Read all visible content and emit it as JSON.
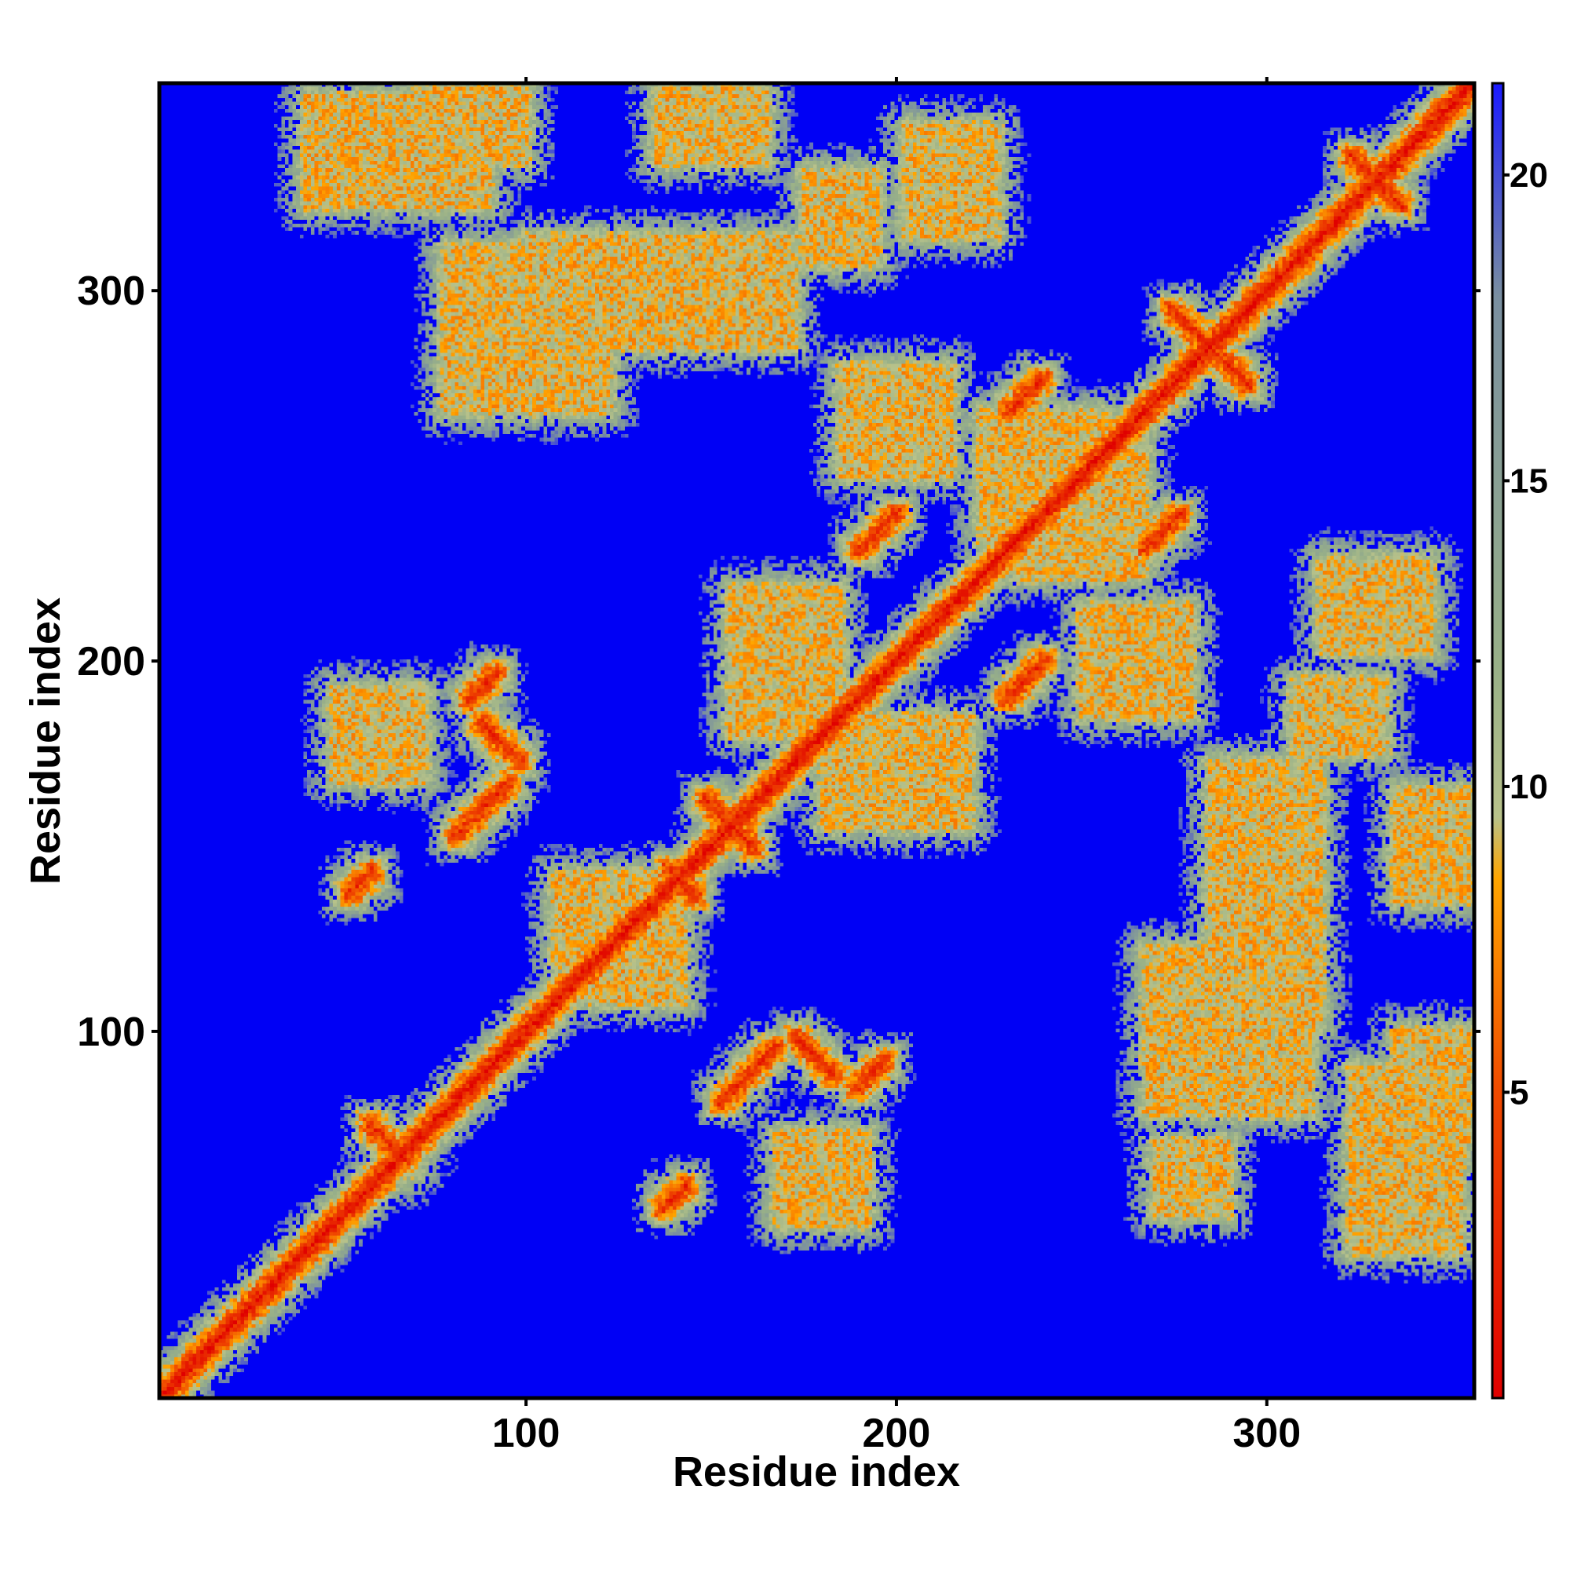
{
  "chart_data": {
    "type": "heatmap",
    "title": "",
    "xlabel": "Residue index",
    "ylabel": "Residue index",
    "n_residues": 356,
    "xlim": [
      1,
      356
    ],
    "ylim": [
      1,
      356
    ],
    "x_ticks": [
      100,
      200,
      300
    ],
    "y_ticks": [
      100,
      200,
      300
    ],
    "colorbar": {
      "range": [
        0,
        21.5
      ],
      "ticks": [
        5,
        10,
        15,
        20
      ],
      "stops": [
        {
          "value": 0,
          "color": "#e00000"
        },
        {
          "value": 5,
          "color": "#f04a00"
        },
        {
          "value": 8.5,
          "color": "#ffa500"
        },
        {
          "value": 9.5,
          "color": "#b8c28a"
        },
        {
          "value": 12,
          "color": "#98b088"
        },
        {
          "value": 18,
          "color": "#7a8fa0"
        },
        {
          "value": 21.5,
          "color": "#1a1aff"
        }
      ]
    },
    "background_color": "#0000f5",
    "cutoff": 20,
    "diagonal_band_width": 14,
    "contact_features": [
      {
        "type": "blob",
        "x": 66,
        "y": 66,
        "size": 12
      },
      {
        "type": "anti",
        "x": 62,
        "y": 70,
        "length": 14
      },
      {
        "type": "anti",
        "x": 142,
        "y": 140,
        "length": 12
      },
      {
        "type": "anti",
        "x": 155,
        "y": 156,
        "length": 20
      },
      {
        "type": "anti",
        "x": 285,
        "y": 285,
        "length": 30
      },
      {
        "type": "anti",
        "x": 330,
        "y": 330,
        "length": 20
      },
      {
        "type": "anti",
        "x": 93,
        "y": 178,
        "length": 16
      },
      {
        "type": "anti",
        "x": 178,
        "y": 93,
        "length": 16
      },
      {
        "type": "parallel",
        "x": 88,
        "y": 160,
        "length": 22
      },
      {
        "type": "parallel",
        "x": 160,
        "y": 88,
        "length": 22
      },
      {
        "type": "parallel",
        "x": 195,
        "y": 235,
        "length": 16
      },
      {
        "type": "parallel",
        "x": 235,
        "y": 195,
        "length": 16
      },
      {
        "type": "parallel",
        "x": 235,
        "y": 272,
        "length": 14
      },
      {
        "type": "parallel",
        "x": 272,
        "y": 235,
        "length": 14
      },
      {
        "type": "parallel",
        "x": 88,
        "y": 193,
        "length": 12
      },
      {
        "type": "parallel",
        "x": 193,
        "y": 88,
        "length": 12
      },
      {
        "type": "parallel",
        "x": 55,
        "y": 140,
        "length": 10
      },
      {
        "type": "parallel",
        "x": 140,
        "y": 55,
        "length": 10
      },
      {
        "type": "patch",
        "x": 65,
        "y": 338,
        "w": 50,
        "h": 30
      },
      {
        "type": "patch",
        "x": 338,
        "y": 65,
        "w": 30,
        "h": 50
      },
      {
        "type": "patch",
        "x": 100,
        "y": 290,
        "w": 45,
        "h": 45
      },
      {
        "type": "patch",
        "x": 290,
        "y": 100,
        "w": 45,
        "h": 45
      },
      {
        "type": "patch",
        "x": 155,
        "y": 300,
        "w": 35,
        "h": 30
      },
      {
        "type": "patch",
        "x": 300,
        "y": 155,
        "w": 30,
        "h": 35
      },
      {
        "type": "patch",
        "x": 215,
        "y": 330,
        "w": 25,
        "h": 30
      },
      {
        "type": "patch",
        "x": 330,
        "y": 215,
        "w": 30,
        "h": 25
      },
      {
        "type": "patch",
        "x": 200,
        "y": 265,
        "w": 30,
        "h": 30
      },
      {
        "type": "patch",
        "x": 265,
        "y": 200,
        "w": 30,
        "h": 30
      },
      {
        "type": "patch",
        "x": 170,
        "y": 200,
        "w": 30,
        "h": 40
      },
      {
        "type": "patch",
        "x": 200,
        "y": 170,
        "w": 40,
        "h": 30
      },
      {
        "type": "patch",
        "x": 60,
        "y": 180,
        "w": 25,
        "h": 25
      },
      {
        "type": "patch",
        "x": 180,
        "y": 60,
        "w": 25,
        "h": 25
      },
      {
        "type": "patch",
        "x": 125,
        "y": 130,
        "w": 35,
        "h": 25
      },
      {
        "type": "patch",
        "x": 130,
        "y": 125,
        "w": 25,
        "h": 35
      },
      {
        "type": "patch",
        "x": 320,
        "y": 185,
        "w": 25,
        "h": 20
      },
      {
        "type": "patch",
        "x": 185,
        "y": 320,
        "w": 20,
        "h": 25
      },
      {
        "type": "patch",
        "x": 280,
        "y": 60,
        "w": 20,
        "h": 20
      },
      {
        "type": "patch",
        "x": 345,
        "y": 85,
        "w": 20,
        "h": 30
      },
      {
        "type": "patch",
        "x": 85,
        "y": 345,
        "w": 30,
        "h": 20
      },
      {
        "type": "patch",
        "x": 300,
        "y": 120,
        "w": 30,
        "h": 40
      },
      {
        "type": "patch",
        "x": 120,
        "y": 300,
        "w": 40,
        "h": 30
      },
      {
        "type": "patch",
        "x": 250,
        "y": 240,
        "w": 35,
        "h": 35
      },
      {
        "type": "patch",
        "x": 240,
        "y": 250,
        "w": 35,
        "h": 35
      },
      {
        "type": "patch",
        "x": 345,
        "y": 150,
        "w": 20,
        "h": 30
      },
      {
        "type": "patch",
        "x": 150,
        "y": 345,
        "w": 30,
        "h": 20
      }
    ]
  }
}
